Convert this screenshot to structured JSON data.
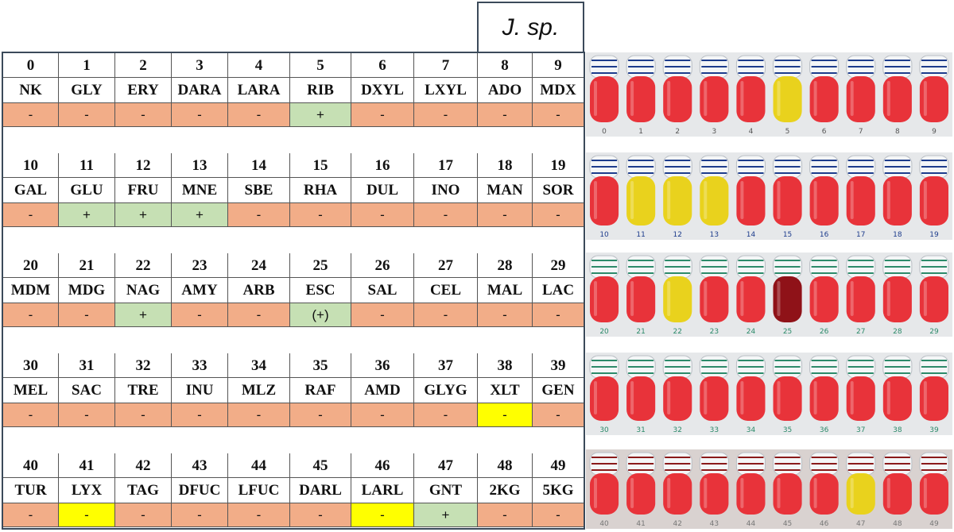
{
  "species_label": "J. sp.",
  "colors": {
    "negative": "#f2ad88",
    "positive": "#c6e0b4",
    "yellow": "#ffff00"
  },
  "blocks": [
    {
      "nums": [
        "0",
        "1",
        "2",
        "3",
        "4",
        "5",
        "6",
        "7",
        "8",
        "9"
      ],
      "abbrs": [
        "NK",
        "GLY",
        "ERY",
        "DARA",
        "LARA",
        "RIB",
        "DXYL",
        "LXYL",
        "ADO",
        "MDX"
      ],
      "results": [
        "-",
        "-",
        "-",
        "-",
        "-",
        "+",
        "-",
        "-",
        "-",
        "-"
      ],
      "states": [
        "neg",
        "neg",
        "neg",
        "neg",
        "neg",
        "pos",
        "neg",
        "neg",
        "neg",
        "neg"
      ],
      "strip_labels": [
        "0",
        "1",
        "2",
        "3",
        "4",
        "5",
        "6",
        "7",
        "8",
        "9"
      ],
      "tube_colors": [
        "red",
        "red",
        "red",
        "red",
        "red",
        "yellow",
        "red",
        "red",
        "red",
        "red"
      ]
    },
    {
      "nums": [
        "10",
        "11",
        "12",
        "13",
        "14",
        "15",
        "16",
        "17",
        "18",
        "19"
      ],
      "abbrs": [
        "GAL",
        "GLU",
        "FRU",
        "MNE",
        "SBE",
        "RHA",
        "DUL",
        "INO",
        "MAN",
        "SOR"
      ],
      "results": [
        "-",
        "+",
        "+",
        "+",
        "-",
        "-",
        "-",
        "-",
        "-",
        "-"
      ],
      "states": [
        "neg",
        "pos",
        "pos",
        "pos",
        "neg",
        "neg",
        "neg",
        "neg",
        "neg",
        "neg"
      ],
      "strip_labels": [
        "10",
        "11",
        "12",
        "13",
        "14",
        "15",
        "16",
        "17",
        "18",
        "19"
      ],
      "tube_colors": [
        "red",
        "yellow",
        "yellow",
        "yellow",
        "red",
        "red",
        "red",
        "red",
        "red",
        "red"
      ]
    },
    {
      "nums": [
        "20",
        "21",
        "22",
        "23",
        "24",
        "25",
        "26",
        "27",
        "28",
        "29"
      ],
      "abbrs": [
        "MDM",
        "MDG",
        "NAG",
        "AMY",
        "ARB",
        "ESC",
        "SAL",
        "CEL",
        "MAL",
        "LAC"
      ],
      "results": [
        "-",
        "-",
        "+",
        "-",
        "-",
        "(+)",
        "-",
        "-",
        "-",
        "-"
      ],
      "states": [
        "neg",
        "neg",
        "pos",
        "neg",
        "neg",
        "pos",
        "neg",
        "neg",
        "neg",
        "neg"
      ],
      "strip_labels": [
        "20",
        "21",
        "22",
        "23",
        "24",
        "25",
        "26",
        "27",
        "28",
        "29"
      ],
      "tube_colors": [
        "red",
        "red",
        "yellow",
        "red",
        "red",
        "dark",
        "red",
        "red",
        "red",
        "red"
      ]
    },
    {
      "nums": [
        "30",
        "31",
        "32",
        "33",
        "34",
        "35",
        "36",
        "37",
        "38",
        "39"
      ],
      "abbrs": [
        "MEL",
        "SAC",
        "TRE",
        "INU",
        "MLZ",
        "RAF",
        "AMD",
        "GLYG",
        "XLT",
        "GEN"
      ],
      "results": [
        "-",
        "-",
        "-",
        "-",
        "-",
        "-",
        "-",
        "-",
        "-",
        "-"
      ],
      "states": [
        "neg",
        "neg",
        "neg",
        "neg",
        "neg",
        "neg",
        "neg",
        "neg",
        "yel",
        "neg"
      ],
      "strip_labels": [
        "30",
        "31",
        "32",
        "33",
        "34",
        "35",
        "36",
        "37",
        "38",
        "39"
      ],
      "tube_colors": [
        "red",
        "red",
        "red",
        "red",
        "red",
        "red",
        "red",
        "red",
        "red",
        "red"
      ]
    },
    {
      "nums": [
        "40",
        "41",
        "42",
        "43",
        "44",
        "45",
        "46",
        "47",
        "48",
        "49"
      ],
      "abbrs": [
        "TUR",
        "LYX",
        "TAG",
        "DFUC",
        "LFUC",
        "DARL",
        "LARL",
        "GNT",
        "2KG",
        "5KG"
      ],
      "results": [
        "-",
        "-",
        "-",
        "-",
        "-",
        "-",
        "-",
        "+",
        "-",
        "-"
      ],
      "states": [
        "neg",
        "yel",
        "neg",
        "neg",
        "neg",
        "neg",
        "yel",
        "pos",
        "neg",
        "neg"
      ],
      "strip_labels": [
        "40",
        "41",
        "42",
        "43",
        "44",
        "45",
        "46",
        "47",
        "48",
        "49"
      ],
      "tube_colors": [
        "red",
        "red",
        "red",
        "red",
        "red",
        "red",
        "red",
        "yellow",
        "red",
        "red"
      ]
    }
  ]
}
